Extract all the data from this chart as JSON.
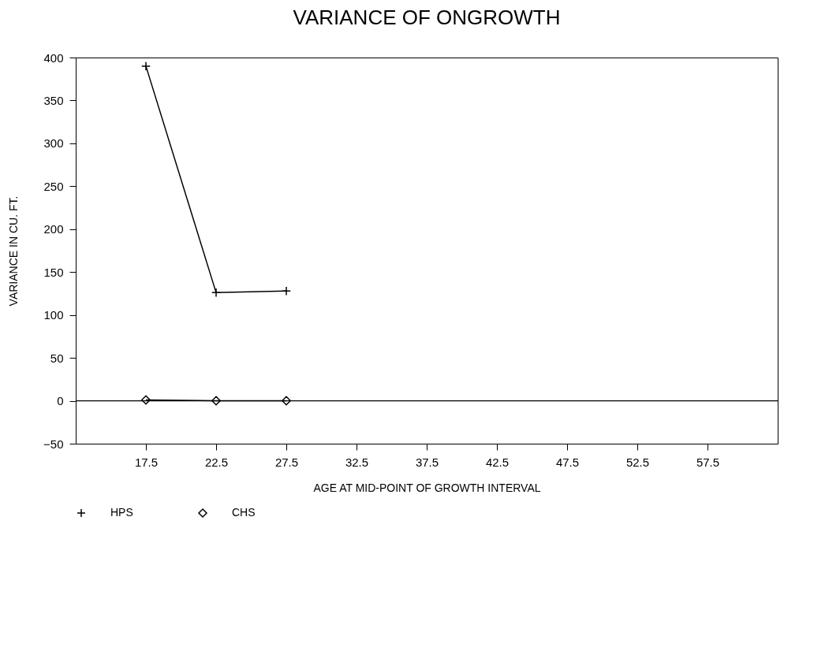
{
  "chart_data": {
    "type": "line",
    "title": "VARIANCE OF ONGROWTH",
    "xlabel": "AGE AT MID-POINT OF GROWTH INTERVAL",
    "ylabel": "VARIANCE IN CU. FT.",
    "x": [
      17.5,
      22.5,
      27.5
    ],
    "series": [
      {
        "name": "HPS",
        "color": "#000000",
        "marker": "cross",
        "values": [
          390,
          126,
          128
        ]
      },
      {
        "name": "CHS",
        "color": "#000000",
        "marker": "diamond",
        "values": [
          1,
          0,
          0
        ]
      }
    ],
    "xlim": [
      12.5,
      62.5
    ],
    "xticks": [
      17.5,
      22.5,
      27.5,
      32.5,
      37.5,
      42.5,
      47.5,
      52.5,
      57.5
    ],
    "ylim": [
      -50,
      400
    ],
    "yticks": [
      -50,
      0,
      50,
      100,
      150,
      200,
      250,
      300,
      350,
      400
    ],
    "ref_lines": [
      {
        "axis": "y",
        "value": 0,
        "color": "#000000"
      }
    ],
    "grid": false,
    "legend": "bottom",
    "line_style": "solid"
  }
}
